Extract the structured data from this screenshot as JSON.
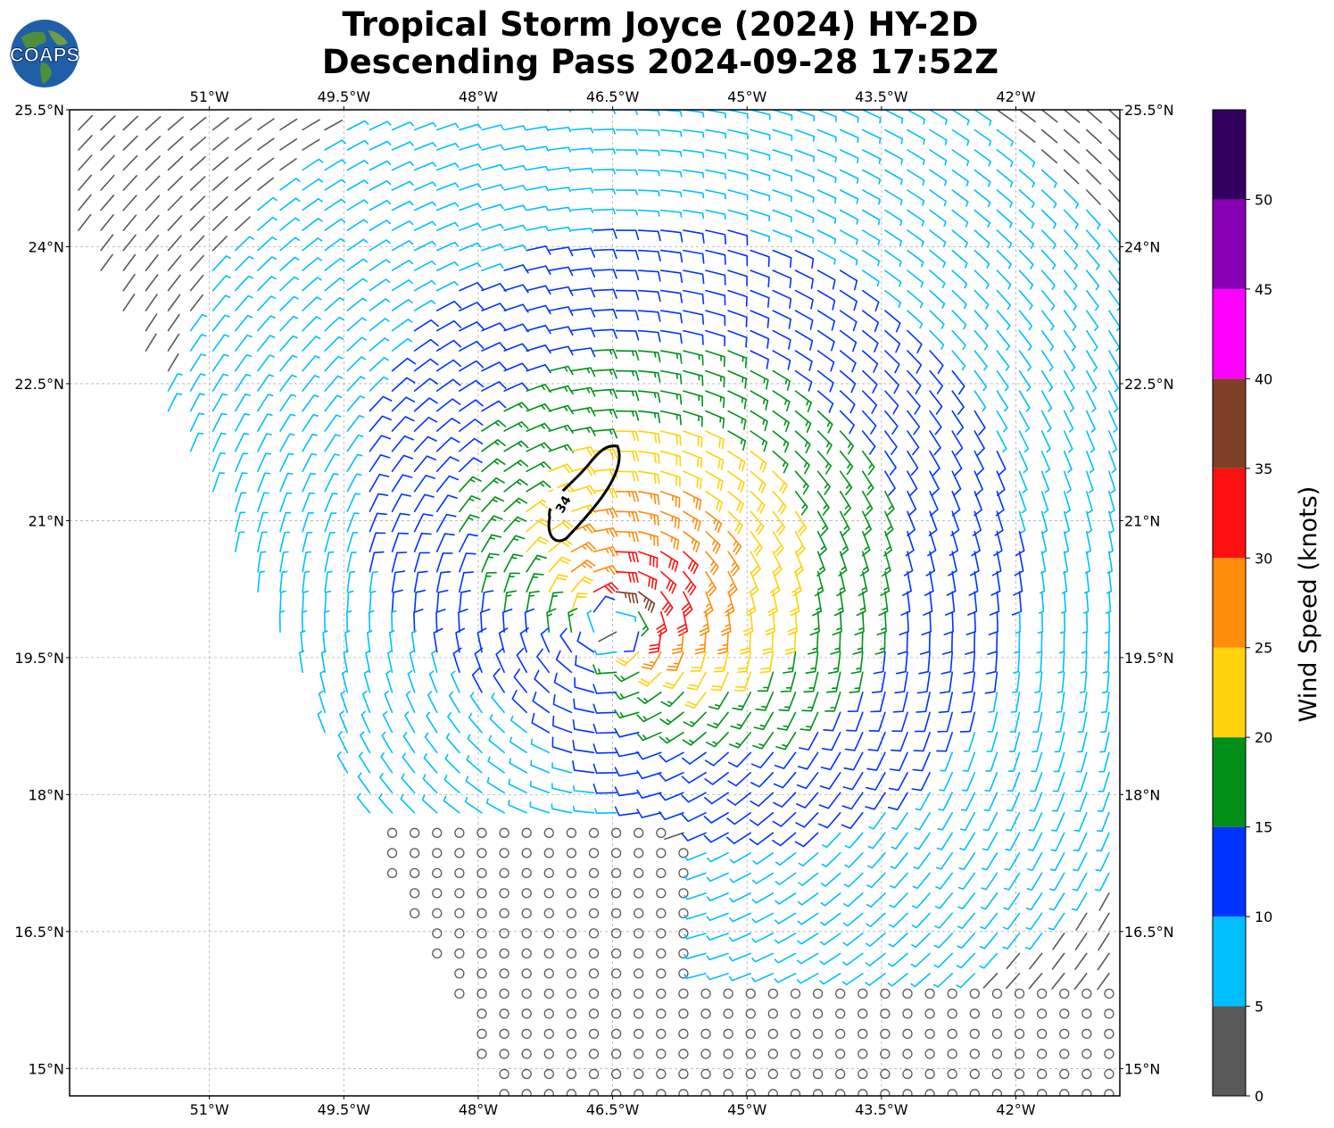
{
  "title": {
    "line1": "Tropical Storm Joyce (2024) HY-2D",
    "line2": "Descending Pass 2024-09-28 17:52Z"
  },
  "logo": {
    "text": "COAPS",
    "icon": "globe-icon"
  },
  "map": {
    "lon_range": [
      -52.56,
      -40.84
    ],
    "lat_range": [
      14.7,
      25.5
    ],
    "lon_ticks": [
      "51°W",
      "49.5°W",
      "48°W",
      "46.5°W",
      "45°W",
      "43.5°W",
      "42°W"
    ],
    "lat_ticks": [
      "25.5°N",
      "24°N",
      "22.5°N",
      "21°N",
      "19.5°N",
      "18°N",
      "16.5°N",
      "15°N"
    ],
    "gridlines": true,
    "storm_center": {
      "lon": -46.5,
      "lat": 19.85
    },
    "wind_34kt_contour_label": "34"
  },
  "colorbar": {
    "label": "Wind Speed (knots)",
    "tick_labels": [
      "0",
      "5",
      "10",
      "15",
      "20",
      "25",
      "30",
      "35",
      "40",
      "45",
      "50"
    ],
    "colors": [
      "#595959",
      "#00bfff",
      "#0033ff",
      "#00901a",
      "#ffd20c",
      "#ff8c0a",
      "#ff1010",
      "#7f3f27",
      "#ff00ff",
      "#8800b2",
      "#33005f"
    ]
  }
}
